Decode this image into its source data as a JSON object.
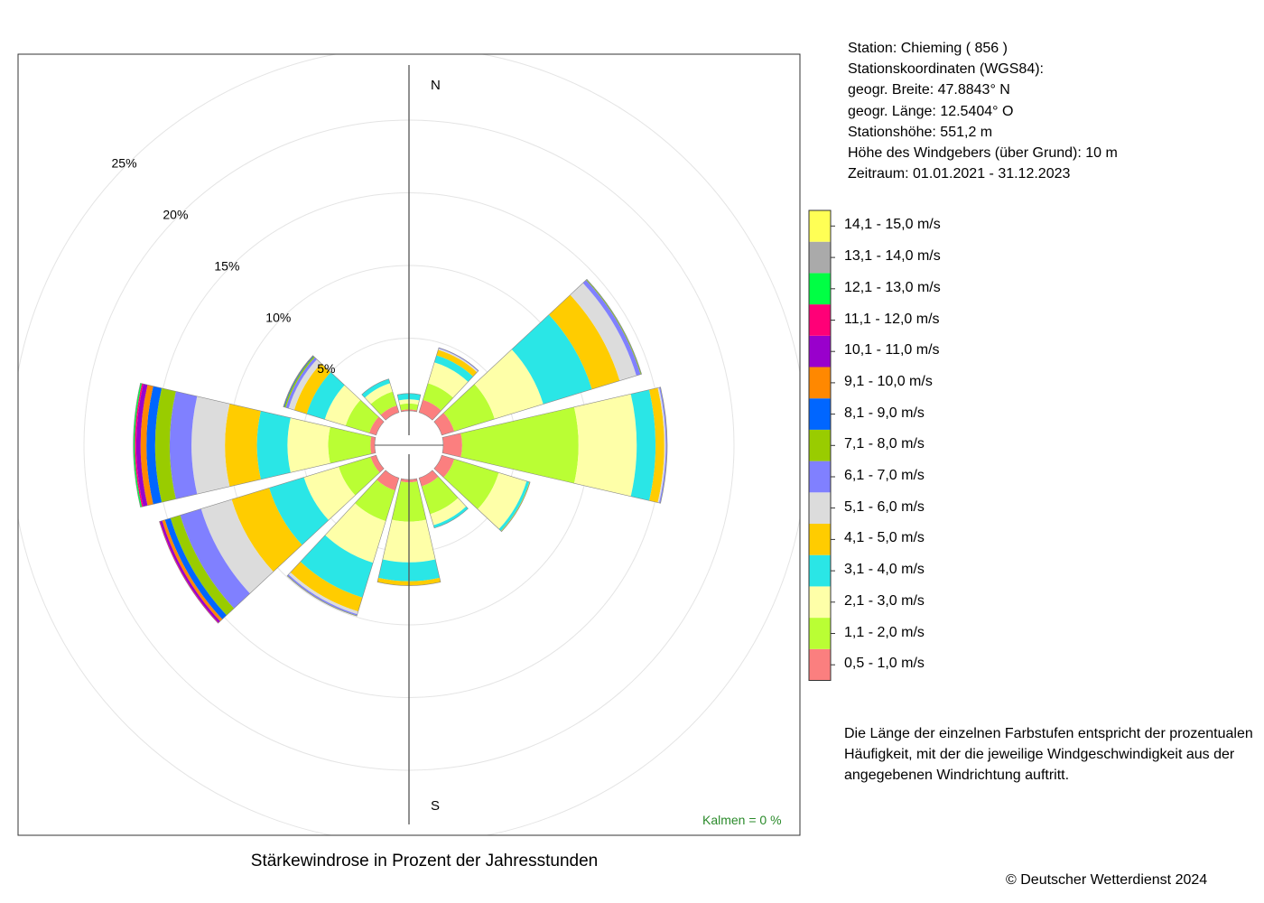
{
  "station_info": [
    "Station:  Chieming  ( 856 )",
    "Stationskoordinaten (WGS84):",
    "geogr. Breite: 47.8843° N",
    "geogr. Länge: 12.5404° O",
    "Stationshöhe: 551,2 m",
    "Höhe des Windgebers (über Grund): 10 m",
    "Zeitraum: 01.01.2021 - 31.12.2023"
  ],
  "description": [
    "Die Länge der einzelnen Farbstufen entspricht der prozentualen",
    "Häufigkeit, mit der die jeweilige Windgeschwindigkeit aus der",
    "angegebenen Windrichtung auftritt."
  ],
  "copyright": "© Deutscher Wetterdienst  2024",
  "chart_data": {
    "type": "wind_rose",
    "title": "Stärkewindrose in Prozent der Jahresstunden",
    "direction_labels": {
      "north": "N",
      "south": "S"
    },
    "calm_label": "Kalmen  =  0 %",
    "rings": [
      {
        "value": 5,
        "label": "5%"
      },
      {
        "value": 10,
        "label": "10%"
      },
      {
        "value": 15,
        "label": "15%"
      },
      {
        "value": 20,
        "label": "20%"
      },
      {
        "value": 25,
        "label": "25%"
      }
    ],
    "speed_classes": [
      {
        "label": "0,5 - 1,0 m/s",
        "color": "#fb7f7f"
      },
      {
        "label": "1,1 - 2,0 m/s",
        "color": "#bafe34"
      },
      {
        "label": "2,1 - 3,0 m/s",
        "color": "#feffa8"
      },
      {
        "label": "3,1 - 4,0 m/s",
        "color": "#2ae6e6"
      },
      {
        "label": "4,1 - 5,0 m/s",
        "color": "#ffcc00"
      },
      {
        "label": "5,1 - 6,0 m/s",
        "color": "#dcdcdc"
      },
      {
        "label": "6,1 - 7,0 m/s",
        "color": "#8080ff"
      },
      {
        "label": "7,1 - 8,0 m/s",
        "color": "#99cc00"
      },
      {
        "label": "8,1 - 9,0 m/s",
        "color": "#0066ff"
      },
      {
        "label": "9,1 - 10,0 m/s",
        "color": "#ff8800"
      },
      {
        "label": "10,1 - 11,0 m/s",
        "color": "#9900cc"
      },
      {
        "label": "11,1 - 12,0 m/s",
        "color": "#ff0077"
      },
      {
        "label": "12,1 - 13,0 m/s",
        "color": "#00ff44"
      },
      {
        "label": "13,1 - 14,0 m/s",
        "color": "#aaaaaa"
      },
      {
        "label": "14,1 - 15,0 m/s",
        "color": "#ffff55"
      }
    ],
    "sectors": [
      {
        "direction_deg": 0,
        "values": [
          0.1,
          0.4,
          0.3,
          0.4
        ]
      },
      {
        "direction_deg": 30,
        "values": [
          0.9,
          1.2,
          1.5,
          0.5,
          0.4,
          0.1,
          0.05
        ]
      },
      {
        "direction_deg": 60,
        "values": [
          0.9,
          2.9,
          3.5,
          3.5,
          2.0,
          1.2,
          0.3,
          0.05,
          0.02
        ]
      },
      {
        "direction_deg": 90,
        "values": [
          1.3,
          8.0,
          4.0,
          1.3,
          0.6,
          0.1,
          0.08,
          0.02
        ]
      },
      {
        "direction_deg": 120,
        "values": [
          0.9,
          3.2,
          2.0,
          0.2,
          0.05
        ]
      },
      {
        "direction_deg": 150,
        "values": [
          0.6,
          2.0,
          0.8,
          0.2
        ]
      },
      {
        "direction_deg": 180,
        "values": [
          0.2,
          2.7,
          2.8,
          1.3,
          0.3
        ]
      },
      {
        "direction_deg": 210,
        "values": [
          0.9,
          2.2,
          3.0,
          2.5,
          1.0,
          0.2,
          0.1,
          0.03
        ]
      },
      {
        "direction_deg": 240,
        "values": [
          0.4,
          2.3,
          2.5,
          2.5,
          2.7,
          2.2,
          1.5,
          0.7,
          0.4,
          0.2,
          0.15,
          0.05
        ]
      },
      {
        "direction_deg": 270,
        "values": [
          0.3,
          2.9,
          2.8,
          2.1,
          2.2,
          2.3,
          1.5,
          1.0,
          0.6,
          0.4,
          0.3,
          0.1,
          0.1
        ]
      },
      {
        "direction_deg": 300,
        "values": [
          0.5,
          1.7,
          1.5,
          1.3,
          0.9,
          0.4,
          0.2,
          0.1,
          0.05,
          0.03
        ]
      },
      {
        "direction_deg": 330,
        "values": [
          0.5,
          1.0,
          0.6,
          0.3
        ]
      }
    ]
  }
}
